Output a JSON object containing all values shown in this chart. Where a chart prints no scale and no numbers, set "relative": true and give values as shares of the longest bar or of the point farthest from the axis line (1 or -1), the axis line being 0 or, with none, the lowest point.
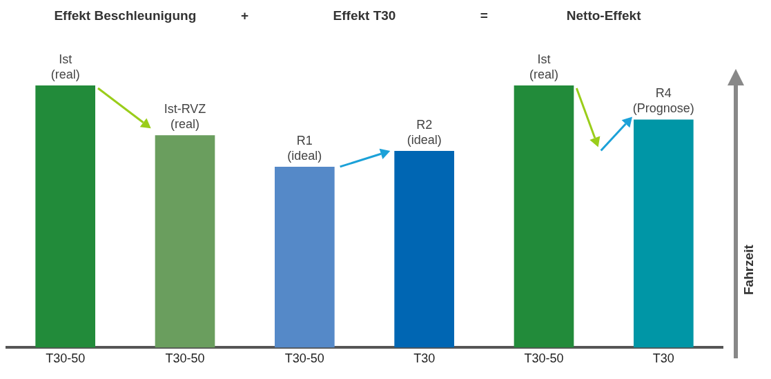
{
  "chart_data": {
    "type": "bar",
    "relative": true,
    "categories": [
      "T30-50",
      "T30-50",
      "T30-50",
      "T30",
      "T30-50",
      "T30"
    ],
    "values": [
      1,
      0.81,
      0.69,
      0.75,
      1,
      0.87
    ],
    "colors": [
      "#228b3a",
      "#6a9e5e",
      "#5589c8",
      "#0066b3",
      "#228b3a",
      "#0096a6"
    ],
    "ylabel": "Fahrzeit",
    "annotations": [
      "Effekt Beschleunigung",
      "+",
      "Effekt T30",
      "=",
      "Netto-Effekt",
      "Ist\n(real)",
      "Ist-RVZ\n(real)",
      "R1\n(ideal)",
      "R2\n(ideal)",
      "Ist\n(real)",
      "R4\n(Prognose)"
    ]
  }
}
